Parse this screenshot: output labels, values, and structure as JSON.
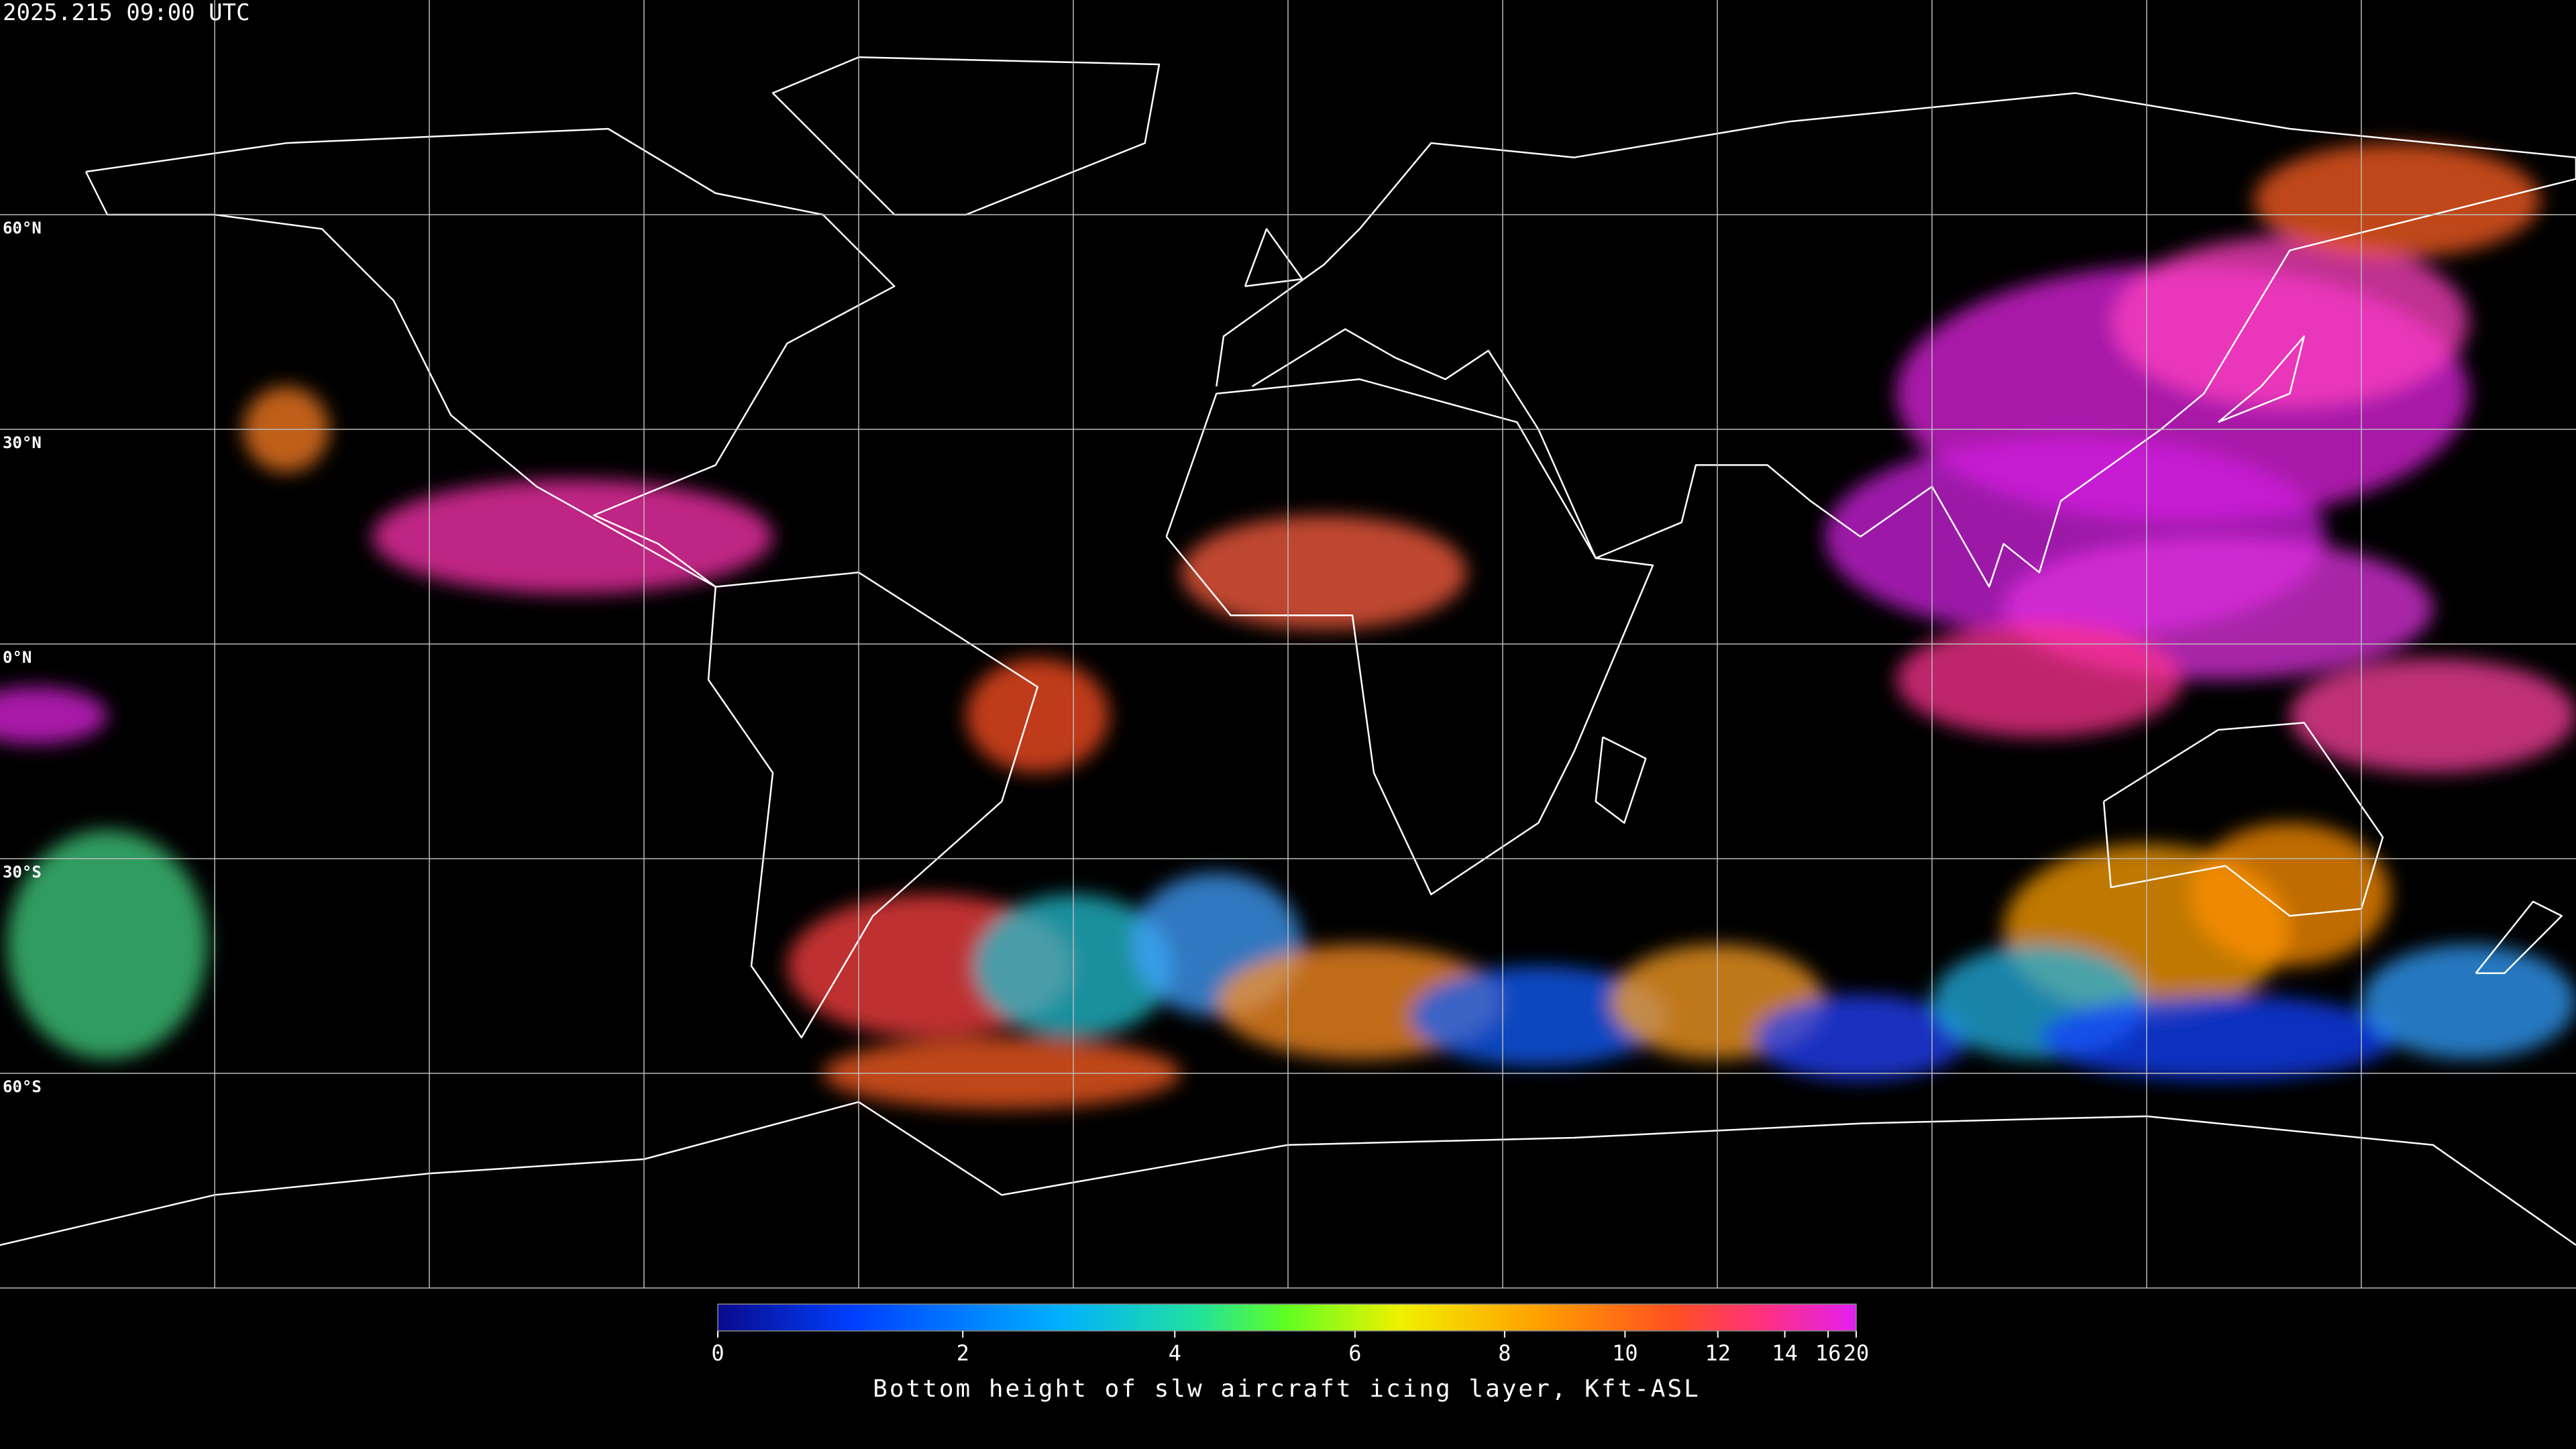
{
  "map": {
    "timestamp": "2025.215 09:00 UTC",
    "lat_labels": [
      "60°N",
      "30°N",
      "0°N",
      "30°S",
      "60°S"
    ]
  },
  "colorbar": {
    "range": [
      0,
      20
    ],
    "ticks": [
      0,
      2,
      4,
      6,
      8,
      10,
      12,
      14,
      16,
      20
    ],
    "label": "Bottom height of slw aircraft icing layer, Kft-ASL"
  }
}
